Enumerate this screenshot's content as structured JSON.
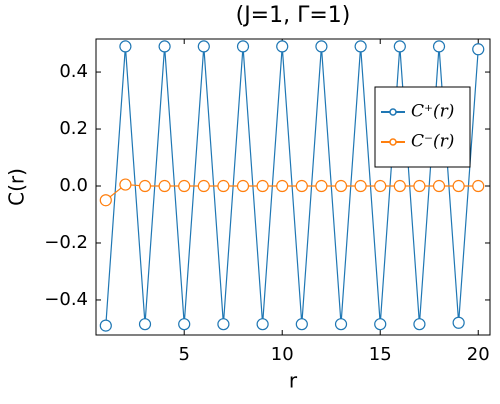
{
  "chart_data": {
    "type": "line",
    "title": "(J=1, Γ=1)",
    "x_label": "r",
    "y_label": "C(r)",
    "x": [
      1,
      2,
      3,
      4,
      5,
      6,
      7,
      8,
      9,
      10,
      11,
      12,
      13,
      14,
      15,
      16,
      17,
      18,
      19,
      20
    ],
    "series": [
      {
        "name": "C⁺(r)",
        "color": "#1f77b4",
        "values": [
          -0.49,
          0.49,
          -0.485,
          0.49,
          -0.485,
          0.49,
          -0.485,
          0.49,
          -0.485,
          0.49,
          -0.485,
          0.49,
          -0.485,
          0.49,
          -0.485,
          0.49,
          -0.485,
          0.49,
          -0.48,
          0.48
        ]
      },
      {
        "name": "C⁻(r)",
        "color": "#ff7f0e",
        "values": [
          -0.05,
          0.005,
          0,
          0,
          0,
          0,
          0,
          0,
          0,
          0,
          0,
          0,
          0,
          0,
          0,
          0,
          0,
          0,
          0,
          0
        ]
      }
    ],
    "xlim": [
      0.5,
      20.6
    ],
    "ylim": [
      -0.523,
      0.516
    ],
    "xticks": [
      5,
      10,
      15,
      20
    ],
    "yticks": [
      {
        "value": -0.4,
        "label": "−0.4"
      },
      {
        "value": -0.2,
        "label": "−0.2"
      },
      {
        "value": 0,
        "label": "0.0"
      },
      0.2,
      0.4
    ],
    "legend_loc": "right"
  }
}
